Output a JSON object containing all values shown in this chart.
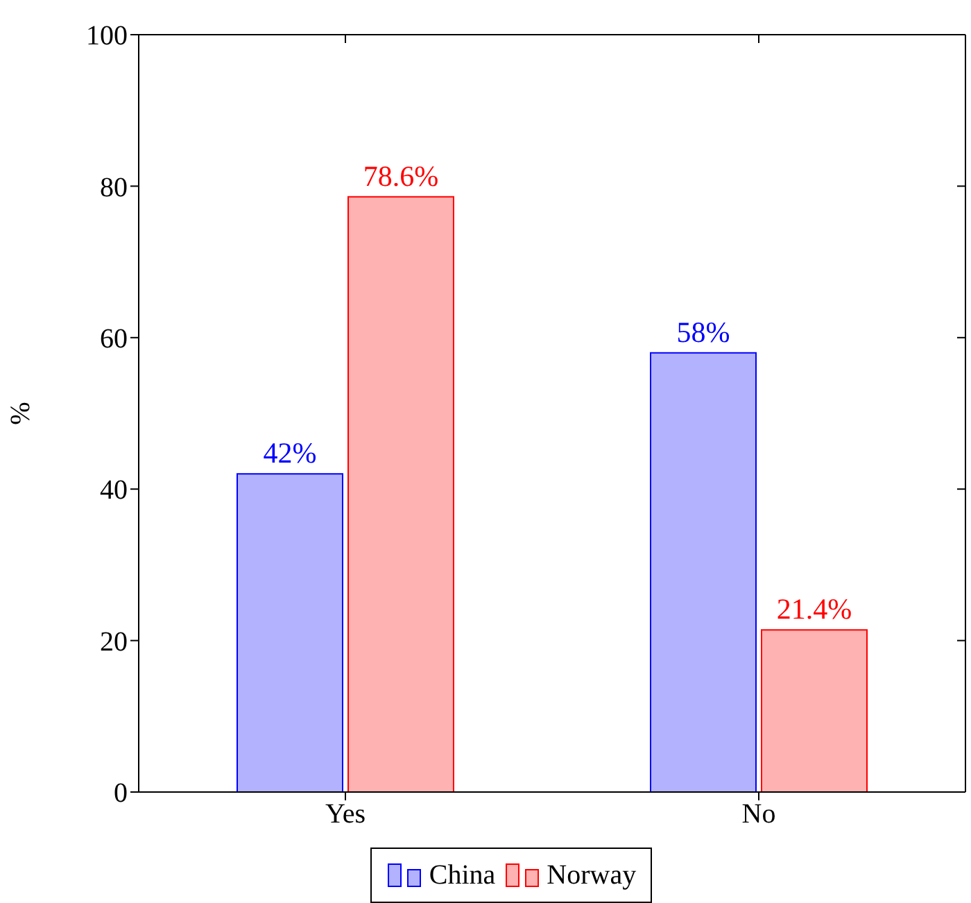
{
  "chart_data": {
    "type": "bar",
    "ylabel": "%",
    "categories": [
      "Yes",
      "No"
    ],
    "series": [
      {
        "name": "China",
        "color": "#0000ff",
        "values": [
          42,
          58
        ],
        "value_labels": [
          "42%",
          "58%"
        ]
      },
      {
        "name": "Norway",
        "color": "#ff0000",
        "values": [
          78.6,
          21.4
        ],
        "value_labels": [
          "78.6%",
          "21.4%"
        ]
      }
    ],
    "ylim": [
      0,
      100
    ],
    "yticks": [
      0,
      20,
      40,
      60,
      80,
      100
    ],
    "grid": false,
    "legend": "bottom"
  }
}
